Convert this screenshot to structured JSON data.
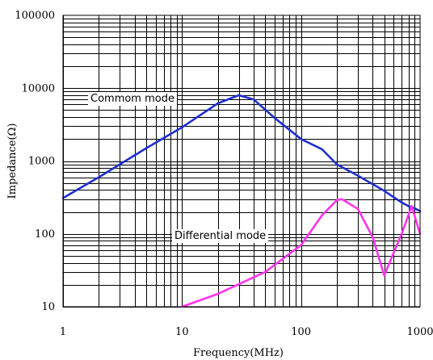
{
  "chart_data": {
    "type": "line",
    "title": "",
    "xlabel": "Frequency(MHz)",
    "ylabel": "Impedance(Ω)",
    "x_scale": "log",
    "y_scale": "log",
    "xlim": [
      1,
      1000
    ],
    "ylim": [
      10,
      100000
    ],
    "grid": true,
    "x_ticks": [
      "1",
      "10",
      "100",
      "1000"
    ],
    "y_ticks": [
      "10",
      "100",
      "1000",
      "10000",
      "100000"
    ],
    "x_tick_values": [
      1,
      10,
      100,
      1000
    ],
    "y_tick_values": [
      10,
      100,
      1000,
      10000,
      100000
    ],
    "annotations": [
      "Commom mode",
      "Differential mode"
    ],
    "series": [
      {
        "name": "Commom mode",
        "color": "#1f2fd0",
        "x": [
          1,
          2,
          5,
          10,
          20,
          30,
          40,
          60,
          100,
          150,
          200,
          300,
          500,
          700,
          800,
          900,
          1000
        ],
        "y": [
          310,
          600,
          1500,
          2900,
          6200,
          8000,
          7000,
          3900,
          2000,
          1450,
          900,
          630,
          390,
          270,
          240,
          225,
          205
        ]
      },
      {
        "name": "Differential mode",
        "color": "#ff33ee",
        "x": [
          10,
          20,
          50,
          100,
          150,
          200,
          220,
          300,
          400,
          500,
          700,
          850,
          1000
        ],
        "y": [
          10,
          15,
          30,
          70,
          180,
          290,
          300,
          220,
          90,
          27,
          100,
          240,
          100
        ]
      }
    ]
  }
}
